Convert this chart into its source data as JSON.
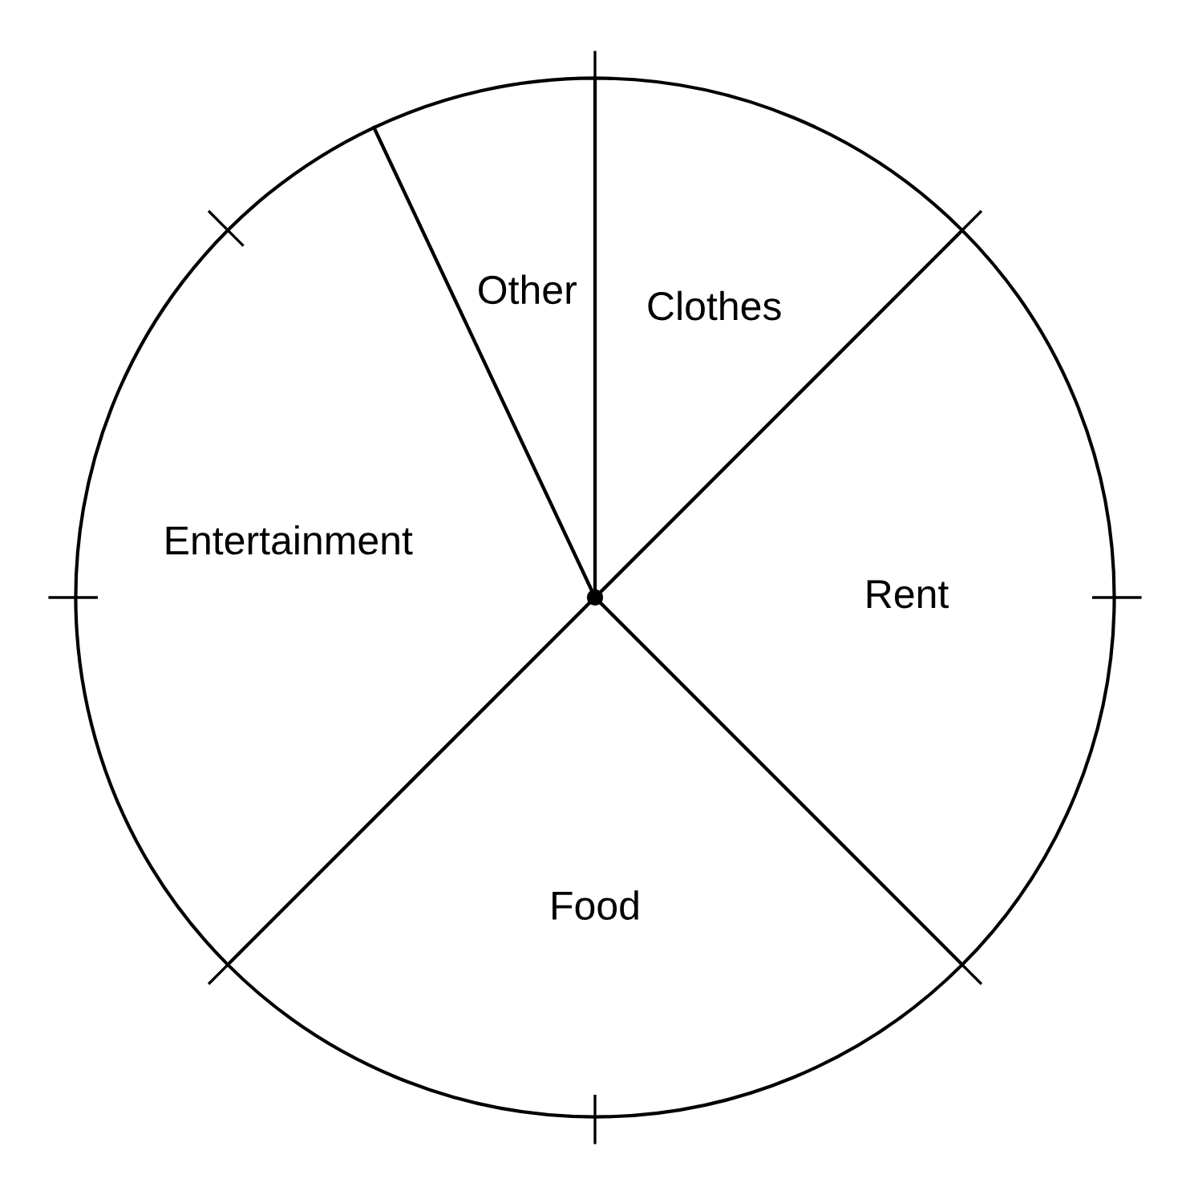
{
  "chart_data": {
    "type": "pie",
    "categories": [
      "Rent",
      "Clothes",
      "Other",
      "Entertainment",
      "Food"
    ],
    "values": [
      25,
      12.5,
      7,
      30.5,
      25
    ],
    "colors": [
      "#ffffff",
      "#ffffff",
      "#ffffff",
      "#ffffff",
      "#ffffff"
    ]
  }
}
